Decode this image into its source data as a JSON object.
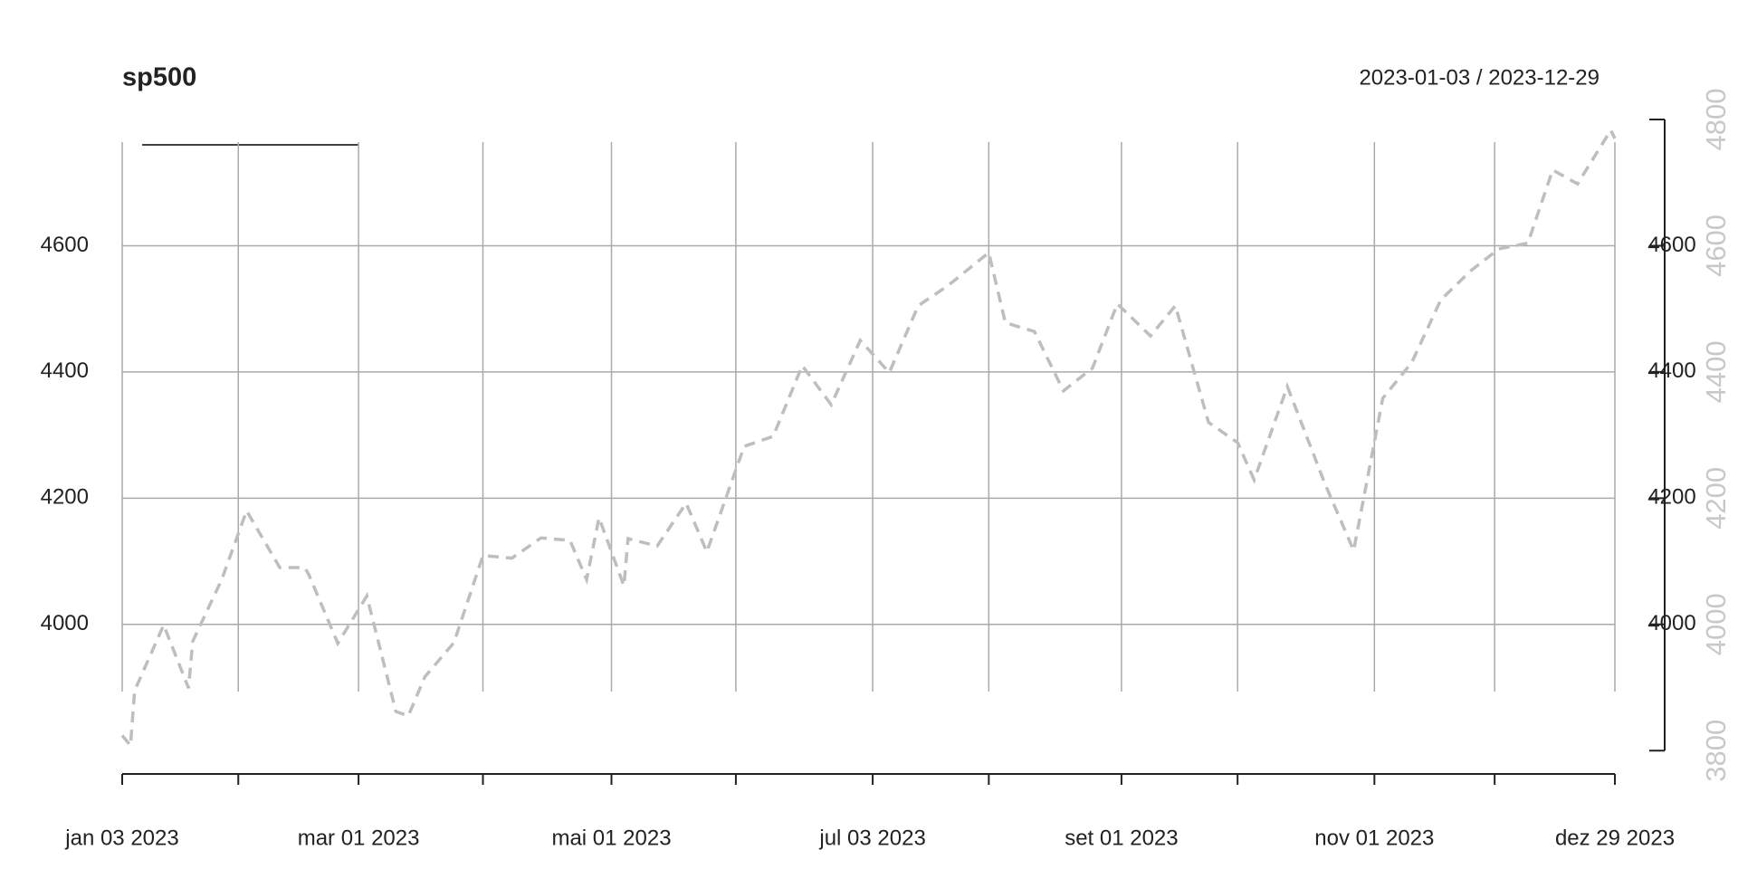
{
  "chart_data": {
    "type": "line",
    "title": "sp500",
    "subtitle": "2023-01-03 / 2023-12-29",
    "xlim": [
      "2023-01-03",
      "2023-12-29"
    ],
    "xticks": [
      {
        "value": "2023-01-03",
        "label": "jan 03 2023"
      },
      {
        "value": "2023-01-31",
        "label": null
      },
      {
        "value": "2023-03-01",
        "label": "mar 01 2023"
      },
      {
        "value": "2023-03-31",
        "label": null
      },
      {
        "value": "2023-05-01",
        "label": "mai 01 2023"
      },
      {
        "value": "2023-05-31",
        "label": null
      },
      {
        "value": "2023-07-03",
        "label": "jul 03 2023"
      },
      {
        "value": "2023-07-31",
        "label": null
      },
      {
        "value": "2023-09-01",
        "label": "set 01 2023"
      },
      {
        "value": "2023-09-29",
        "label": null
      },
      {
        "value": "2023-11-01",
        "label": "nov 01 2023"
      },
      {
        "value": "2023-11-30",
        "label": null
      },
      {
        "value": "2023-12-29",
        "label": "dez 29 2023"
      }
    ],
    "ylim": [
      3763,
      4800
    ],
    "yticks": [
      4000,
      4200,
      4400,
      4600
    ],
    "y2lim": [
      3763,
      4800
    ],
    "y2ticks": [
      3800,
      4000,
      4200,
      4400,
      4600,
      4800
    ],
    "grid": true,
    "x": [
      "2023-01-03",
      "2023-01-05",
      "2023-01-06",
      "2023-01-13",
      "2023-01-19",
      "2023-01-20",
      "2023-01-27",
      "2023-02-02",
      "2023-02-10",
      "2023-02-16",
      "2023-02-17",
      "2023-02-24",
      "2023-03-03",
      "2023-03-10",
      "2023-03-13",
      "2023-03-17",
      "2023-03-24",
      "2023-03-31",
      "2023-04-07",
      "2023-04-14",
      "2023-04-21",
      "2023-04-25",
      "2023-04-28",
      "2023-05-04",
      "2023-05-05",
      "2023-05-12",
      "2023-05-19",
      "2023-05-24",
      "2023-06-02",
      "2023-06-09",
      "2023-06-16",
      "2023-06-23",
      "2023-06-30",
      "2023-07-07",
      "2023-07-14",
      "2023-07-21",
      "2023-07-31",
      "2023-08-04",
      "2023-08-11",
      "2023-08-18",
      "2023-08-25",
      "2023-08-31",
      "2023-09-08",
      "2023-09-14",
      "2023-09-22",
      "2023-09-29",
      "2023-10-03",
      "2023-10-11",
      "2023-10-20",
      "2023-10-27",
      "2023-11-03",
      "2023-11-10",
      "2023-11-17",
      "2023-11-24",
      "2023-12-01",
      "2023-12-08",
      "2023-12-14",
      "2023-12-20",
      "2023-12-28",
      "2023-12-29"
    ],
    "series": [
      {
        "name": "sp500",
        "color": "#bebebe",
        "values": [
          3824,
          3808,
          3895,
          3999,
          3899,
          3973,
          4071,
          4180,
          4090,
          4090,
          4079,
          3970,
          4045,
          3862,
          3855,
          3917,
          3971,
          4109,
          4105,
          4137,
          4133,
          4071,
          4169,
          4061,
          4136,
          4124,
          4192,
          4115,
          4282,
          4298,
          4410,
          4348,
          4450,
          4399,
          4505,
          4536,
          4589,
          4478,
          4464,
          4370,
          4406,
          4508,
          4457,
          4505,
          4320,
          4288,
          4229,
          4377,
          4224,
          4117,
          4358,
          4415,
          4514,
          4559,
          4595,
          4604,
          4720,
          4698,
          4783,
          4770
        ]
      }
    ]
  }
}
